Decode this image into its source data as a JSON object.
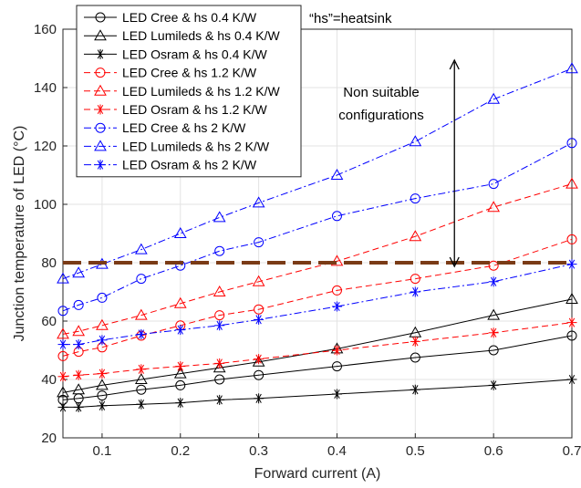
{
  "chart_data": {
    "type": "line",
    "xlabel": "Forward current (A)",
    "ylabel": "Junction temperature of LED (°C)",
    "xlim": [
      0.05,
      0.7
    ],
    "ylim": [
      20,
      160
    ],
    "xticks": [
      0.1,
      0.2,
      0.3,
      0.4,
      0.5,
      0.6,
      0.7
    ],
    "yticks": [
      20,
      40,
      60,
      80,
      100,
      120,
      140,
      160
    ],
    "grid": true,
    "legend_position": "top-left",
    "x": [
      0.05,
      0.07,
      0.1,
      0.15,
      0.2,
      0.25,
      0.3,
      0.4,
      0.5,
      0.6,
      0.7
    ],
    "series": [
      {
        "name": "LED Cree & hs 0.4 K/W",
        "color": "#000000",
        "dash": "solid",
        "marker": "circle",
        "values": [
          33,
          33.5,
          34.5,
          36.5,
          38,
          40,
          41.5,
          44.5,
          47.5,
          50,
          55
        ]
      },
      {
        "name": "LED Lumileds & hs 0.4 K/W",
        "color": "#000000",
        "dash": "solid",
        "marker": "triangle",
        "values": [
          35.5,
          36.5,
          38,
          40,
          42,
          44,
          46,
          50.5,
          56,
          62,
          67.5
        ]
      },
      {
        "name": "LED Osram & hs 0.4 K/W",
        "color": "#000000",
        "dash": "solid",
        "marker": "star",
        "values": [
          30.5,
          30.5,
          31,
          31.5,
          32,
          33,
          33.5,
          35,
          36.5,
          38,
          40
        ]
      },
      {
        "name": "LED Cree & hs 1.2 K/W",
        "color": "#ff0000",
        "dash": "dash",
        "marker": "circle",
        "values": [
          48,
          49.5,
          51,
          55,
          58.5,
          62,
          64,
          70.5,
          74.5,
          79,
          88
        ]
      },
      {
        "name": "LED Lumileds & hs 1.2 K/W",
        "color": "#ff0000",
        "dash": "dash",
        "marker": "triangle",
        "values": [
          55.5,
          56.5,
          58.5,
          62,
          66,
          70,
          73.5,
          80.5,
          89,
          99,
          107
        ]
      },
      {
        "name": "LED Osram & hs 1.2 K/W",
        "color": "#ff0000",
        "dash": "dash",
        "marker": "star",
        "values": [
          41,
          41.5,
          42,
          43.5,
          44.5,
          45.5,
          47,
          50,
          53,
          56,
          59.5
        ]
      },
      {
        "name": "LED Cree & hs 2 K/W",
        "color": "#0000ff",
        "dash": "dashdot",
        "marker": "circle",
        "values": [
          63.5,
          65.5,
          68,
          74.5,
          79,
          84,
          87,
          96,
          102,
          107,
          121
        ]
      },
      {
        "name": "LED Lumileds & hs 2 K/W",
        "color": "#0000ff",
        "dash": "dashdot",
        "marker": "triangle",
        "values": [
          74.5,
          76.5,
          79.5,
          84.5,
          90,
          95.5,
          100.5,
          110,
          121.5,
          136,
          146.5
        ]
      },
      {
        "name": "LED Osram & hs 2 K/W",
        "color": "#0000ff",
        "dash": "dashdot",
        "marker": "star",
        "values": [
          52,
          52,
          53.5,
          55.5,
          57,
          58.5,
          60.5,
          65,
          70,
          73.5,
          79.5
        ]
      }
    ],
    "threshold": {
      "y": 80,
      "color": "#7a3b16"
    },
    "annotations": {
      "note": "“hs”=heatsink",
      "region_label_line1": "Non suitable",
      "region_label_line2": "configurations",
      "arrow_x": 0.55,
      "arrow_y_range": [
        80,
        150
      ]
    }
  }
}
